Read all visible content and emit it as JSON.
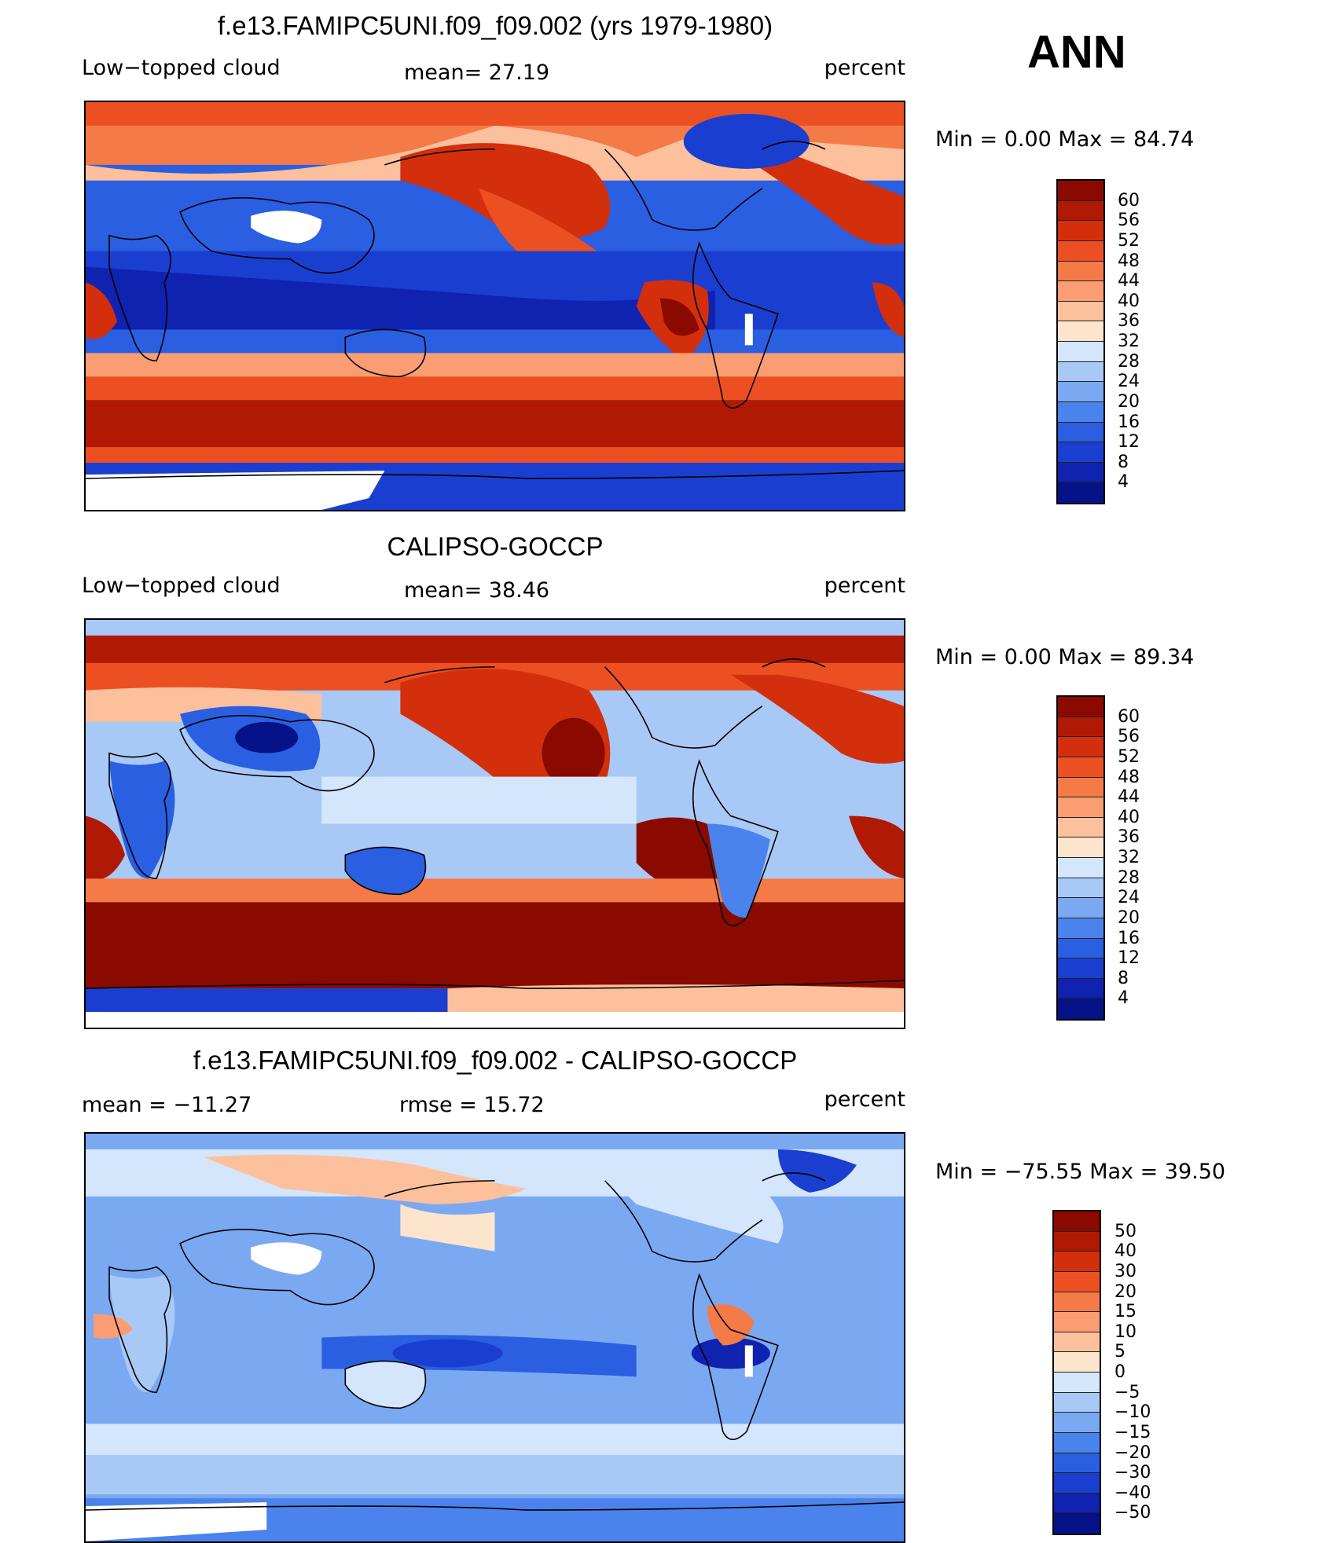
{
  "season": "ANN",
  "panels": [
    {
      "title": "f.e13.FAMIPC5UNI.f09_f09.002 (yrs 1979-1980)",
      "left_label": "Low−topped cloud",
      "center_label": "mean=   27.19",
      "right_label": "percent",
      "minmax": "Min  =     0.00  Max  =    84.74",
      "colorbar": {
        "levels": [
          "60",
          "56",
          "52",
          "48",
          "44",
          "40",
          "36",
          "32",
          "28",
          "24",
          "20",
          "16",
          "12",
          "8",
          "4"
        ],
        "colors": [
          "#8b0a00",
          "#b01a05",
          "#d32f0d",
          "#ec5022",
          "#f47a48",
          "#fa9d72",
          "#fcc09c",
          "#fde4cd",
          "#d3e6fb",
          "#a8c9f6",
          "#7aa9f2",
          "#4a83ec",
          "#2a5fe2",
          "#1a3fd0",
          "#0f22b0",
          "#061288"
        ]
      }
    },
    {
      "title": "CALIPSO-GOCCP",
      "left_label": "Low−topped cloud",
      "center_label": "mean=   38.46",
      "right_label": "percent",
      "minmax": "Min  =     0.00  Max  =    89.34",
      "colorbar": {
        "levels": [
          "60",
          "56",
          "52",
          "48",
          "44",
          "40",
          "36",
          "32",
          "28",
          "24",
          "20",
          "16",
          "12",
          "8",
          "4"
        ],
        "colors": [
          "#8b0a00",
          "#b01a05",
          "#d32f0d",
          "#ec5022",
          "#f47a48",
          "#fa9d72",
          "#fcc09c",
          "#fde4cd",
          "#d3e6fb",
          "#a8c9f6",
          "#7aa9f2",
          "#4a83ec",
          "#2a5fe2",
          "#1a3fd0",
          "#0f22b0",
          "#061288"
        ]
      }
    },
    {
      "title": "f.e13.FAMIPC5UNI.f09_f09.002 - CALIPSO-GOCCP",
      "left_label": "mean  =  −11.27",
      "center_label": "rmse  =    15.72",
      "right_label": "percent",
      "minmax": "Min  = −75.55  Max  =    39.50",
      "colorbar": {
        "levels": [
          "50",
          "40",
          "30",
          "20",
          "15",
          "10",
          "5",
          "0",
          "−5",
          "−10",
          "−15",
          "−20",
          "−30",
          "−40",
          "−50"
        ],
        "colors": [
          "#8b0a00",
          "#b01a05",
          "#d32f0d",
          "#ec5022",
          "#f47a48",
          "#fa9d72",
          "#fcc09c",
          "#fde4cd",
          "#d3e6fb",
          "#a8c9f6",
          "#7aa9f2",
          "#4a83ec",
          "#2a5fe2",
          "#1a3fd0",
          "#0f22b0",
          "#061288"
        ]
      }
    }
  ]
}
